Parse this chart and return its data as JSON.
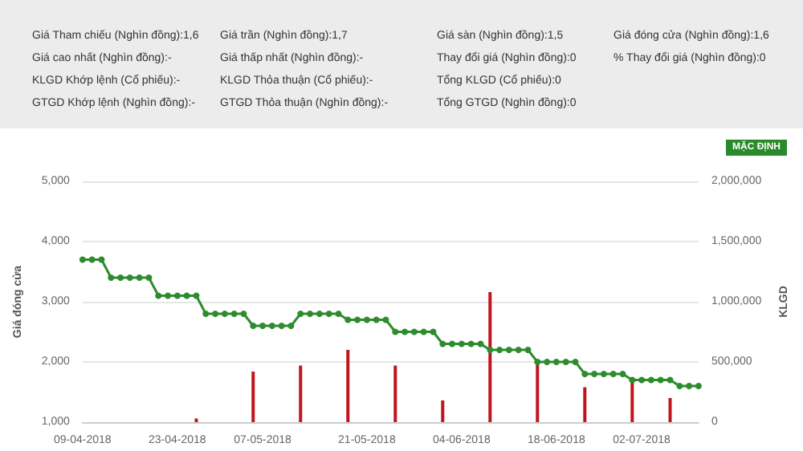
{
  "chart_data": {
    "type": "line",
    "ylabel": "Giá đóng cửa",
    "y2label": "KLGD",
    "categories": [
      "09-04-2018",
      null,
      null,
      null,
      null,
      null,
      null,
      null,
      null,
      null,
      "23-04-2018",
      null,
      null,
      null,
      null,
      null,
      null,
      null,
      null,
      "07-05-2018",
      null,
      null,
      null,
      null,
      null,
      null,
      null,
      null,
      null,
      null,
      "21-05-2018",
      null,
      null,
      null,
      null,
      null,
      null,
      null,
      null,
      null,
      "04-06-2018",
      null,
      null,
      null,
      null,
      null,
      null,
      null,
      null,
      null,
      "18-06-2018",
      null,
      null,
      null,
      null,
      null,
      null,
      null,
      null,
      "02-07-2018",
      null,
      null,
      null,
      null,
      null,
      null
    ],
    "series": [
      {
        "color": "#2e8b2e",
        "values": [
          3700,
          3700,
          3700,
          3400,
          3400,
          3400,
          3400,
          3400,
          3100,
          3100,
          3100,
          3100,
          3100,
          2800,
          2800,
          2800,
          2800,
          2800,
          2600,
          2600,
          2600,
          2600,
          2600,
          2800,
          2800,
          2800,
          2800,
          2800,
          2700,
          2700,
          2700,
          2700,
          2700,
          2500,
          2500,
          2500,
          2500,
          2500,
          2300,
          2300,
          2300,
          2300,
          2300,
          2200,
          2200,
          2200,
          2200,
          2200,
          2000,
          2000,
          2000,
          2000,
          2000,
          1800,
          1800,
          1800,
          1800,
          1800,
          1700,
          1700,
          1700,
          1700,
          1700,
          1600,
          1600,
          1600
        ]
      },
      {
        "type": "bar",
        "axis": "y2",
        "color": "#c0161b",
        "values": [
          null,
          null,
          null,
          null,
          null,
          null,
          null,
          null,
          null,
          null,
          null,
          null,
          30000,
          null,
          null,
          null,
          null,
          null,
          420000,
          null,
          null,
          null,
          null,
          470000,
          null,
          null,
          null,
          null,
          600000,
          null,
          null,
          null,
          null,
          470000,
          null,
          null,
          null,
          null,
          180000,
          null,
          null,
          null,
          null,
          1080000,
          null,
          null,
          null,
          null,
          500000,
          null,
          null,
          null,
          null,
          290000,
          null,
          null,
          null,
          null,
          360000,
          null,
          null,
          null,
          200000,
          null,
          null,
          null
        ]
      }
    ],
    "ylim": [
      1000,
      5000
    ],
    "yticks": [
      {
        "value": 1000,
        "label": "1,000"
      },
      {
        "value": 2000,
        "label": "2,000"
      },
      {
        "value": 3000,
        "label": "3,000"
      },
      {
        "value": 4000,
        "label": "4,000"
      },
      {
        "value": 5000,
        "label": "5,000"
      }
    ],
    "y2lim": [
      0,
      2000000
    ],
    "y2ticks": [
      {
        "value": 0,
        "label": "0"
      },
      {
        "value": 500000,
        "label": "500,000"
      },
      {
        "value": 1000000,
        "label": "1,000,000"
      },
      {
        "value": 1500000,
        "label": "1,500,000"
      },
      {
        "value": 2000000,
        "label": "2,000,000"
      }
    ],
    "grid": "y",
    "marker": "circle",
    "line_style": "solid",
    "annotations": [
      "Giá Tham chiếu (Nghìn đồng):1,6",
      "Giá trần (Nghìn đồng):1,7",
      "Giá sàn (Nghìn đồng):1,5",
      "Giá đóng cửa (Nghìn đồng):1,6",
      "Giá cao nhất (Nghìn đồng):-",
      "Giá thấp nhất (Nghìn đồng):-",
      "Thay đổi giá (Nghìn đồng):0",
      "% Thay đổi giá (Nghìn đồng):0",
      "KLGD Khớp lệnh (Cổ phiếu):-",
      "KLGD Thỏa thuận (Cổ phiếu):-",
      "Tổng KLGD (Cổ phiếu):0",
      "GTGD Khớp lệnh (Nghìn đồng):-",
      "GTGD Thỏa thuận (Nghìn đồng):-",
      "Tổng GTGD (Nghìn đồng):0",
      "MẶC ĐỊNH"
    ]
  }
}
